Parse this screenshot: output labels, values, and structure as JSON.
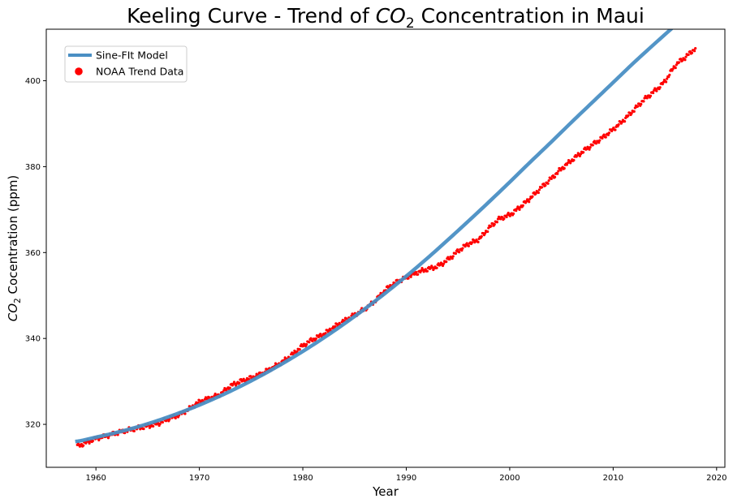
{
  "chart_data": {
    "type": "line",
    "title_prefix": "Keeling Curve - Trend of ",
    "title_math_base": "CO",
    "title_math_sub": "2",
    "title_suffix": " Concentration in Maui",
    "xlabel": "Year",
    "ylabel_math_base": "CO",
    "ylabel_math_sub": "2",
    "ylabel_suffix": " Cocentration (ppm)",
    "xlim": [
      1955.2,
      2020.8
    ],
    "ylim": [
      310,
      412
    ],
    "xticks": [
      1960,
      1970,
      1980,
      1990,
      2000,
      2010,
      2020
    ],
    "yticks": [
      320,
      340,
      360,
      380,
      400
    ],
    "legend_position": "top-left",
    "series": [
      {
        "name": "Sine-FIt Model",
        "kind": "line",
        "color": "#4a8fc4",
        "x": [
          1958,
          1960,
          1962,
          1964,
          1966,
          1968,
          1970,
          1972,
          1974,
          1976,
          1978,
          1980,
          1982,
          1984,
          1986,
          1988,
          1990,
          1992,
          1994,
          1996,
          1998,
          2000,
          2002,
          2004,
          2006,
          2008,
          2010,
          2012,
          2014,
          2016,
          2018
        ],
        "y": [
          316.0,
          317.0,
          318.1,
          319.4,
          320.9,
          322.6,
          324.5,
          326.6,
          328.9,
          331.4,
          334.1,
          337.0,
          340.1,
          343.4,
          346.9,
          350.6,
          354.5,
          358.6,
          362.9,
          367.3,
          371.8,
          376.4,
          381.1,
          385.7,
          390.4,
          395.0,
          399.6,
          404.2,
          408.6,
          412.9,
          417.2
        ]
      },
      {
        "name": "NOAA Trend Data",
        "kind": "scatter",
        "color": "#ff0000",
        "x": [
          1958.2,
          1959,
          1960,
          1961,
          1962,
          1963,
          1964,
          1965,
          1966,
          1967,
          1968,
          1969,
          1970,
          1971,
          1972,
          1973,
          1974,
          1975,
          1976,
          1977,
          1978,
          1979,
          1980,
          1981,
          1982,
          1983,
          1984,
          1985,
          1986,
          1987,
          1988,
          1989,
          1990,
          1991,
          1992,
          1993,
          1994,
          1995,
          1996,
          1997,
          1998,
          1999,
          2000,
          2001,
          2002,
          2003,
          2004,
          2005,
          2006,
          2007,
          2008,
          2009,
          2010,
          2011,
          2012,
          2013,
          2014,
          2015,
          2016,
          2017,
          2018
        ],
        "y": [
          315.0,
          315.7,
          316.7,
          317.3,
          318.0,
          318.6,
          319.1,
          319.6,
          320.2,
          321.3,
          322.2,
          323.6,
          325.2,
          326.1,
          327.0,
          328.9,
          330.0,
          330.8,
          331.8,
          333.1,
          334.5,
          336.3,
          338.3,
          339.8,
          341.0,
          342.6,
          344.1,
          345.5,
          346.9,
          348.8,
          351.3,
          353.0,
          354.2,
          355.3,
          356.1,
          356.8,
          358.3,
          360.3,
          362.0,
          363.1,
          365.7,
          367.8,
          368.8,
          370.6,
          372.7,
          375.0,
          377.2,
          379.5,
          381.5,
          383.4,
          385.1,
          386.8,
          388.7,
          390.8,
          393.2,
          395.6,
          397.6,
          399.9,
          403.5,
          405.5,
          407.5
        ]
      }
    ]
  }
}
